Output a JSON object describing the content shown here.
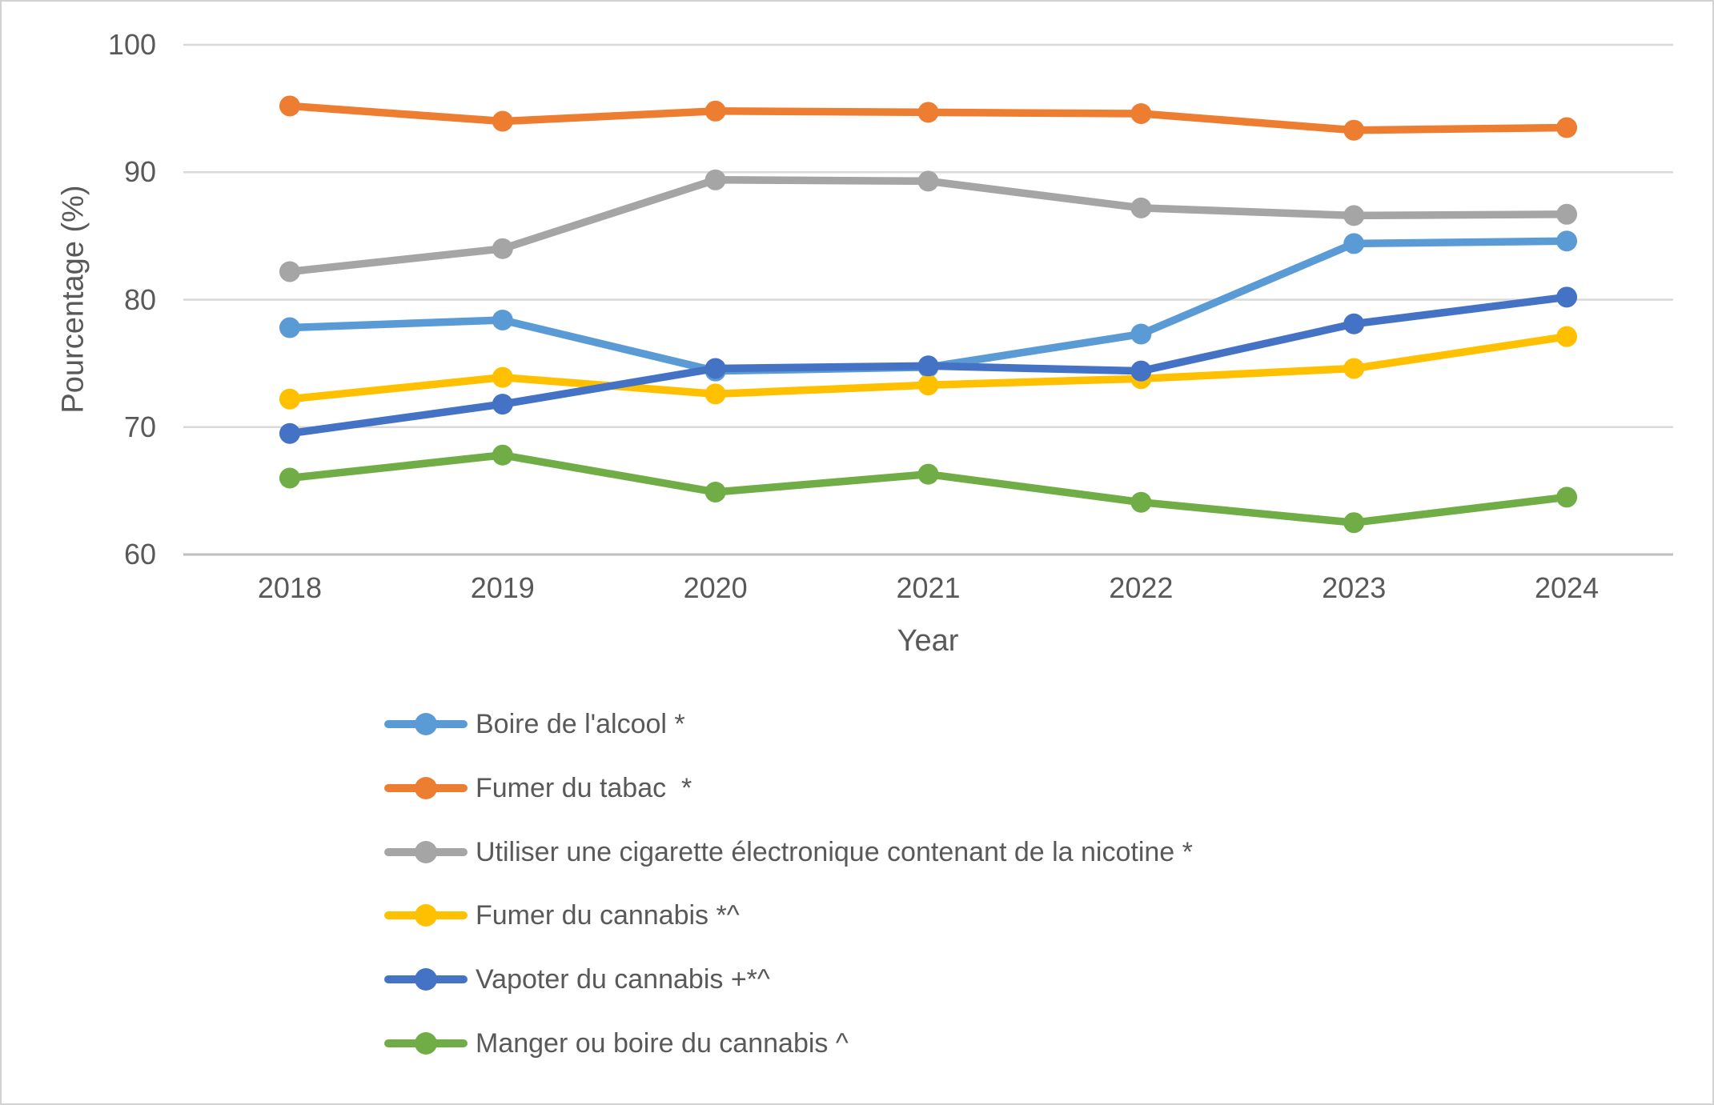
{
  "chart_data": {
    "type": "line",
    "title": "",
    "xlabel": "Year",
    "ylabel": "Pourcentage (%)",
    "ylim": [
      60,
      100
    ],
    "yticks": [
      100,
      90,
      80,
      70,
      60
    ],
    "grid": "horizontal",
    "legend_position": "bottom-left",
    "categories": [
      "2018",
      "2019",
      "2020",
      "2021",
      "2022",
      "2023",
      "2024"
    ],
    "series": [
      {
        "name": "Boire de l'alcool *",
        "color": "#5B9BD5",
        "values": [
          77.8,
          78.4,
          74.4,
          74.7,
          77.3,
          84.4,
          84.6
        ]
      },
      {
        "name": "Fumer du tabac  *",
        "color": "#ED7D31",
        "values": [
          95.2,
          94.0,
          94.8,
          94.7,
          94.6,
          93.3,
          93.5
        ]
      },
      {
        "name": "Utiliser une cigarette électronique contenant de la nicotine *",
        "color": "#A5A5A5",
        "values": [
          82.2,
          84.0,
          89.4,
          89.3,
          87.2,
          86.6,
          86.7
        ]
      },
      {
        "name": "Fumer du cannabis *^",
        "color": "#FFC000",
        "values": [
          72.2,
          73.9,
          72.6,
          73.3,
          73.8,
          74.6,
          77.1
        ]
      },
      {
        "name": "Vapoter du cannabis +*^",
        "color": "#4472C4",
        "values": [
          69.5,
          71.8,
          74.6,
          74.8,
          74.4,
          78.1,
          80.2
        ]
      },
      {
        "name": "Manger ou boire du cannabis ^",
        "color": "#70AD47",
        "values": [
          66.0,
          67.8,
          64.9,
          66.3,
          64.1,
          62.5,
          64.5
        ]
      }
    ],
    "colors": {
      "text": "#595959",
      "gridline": "#D9D9D9",
      "axis_line": "#BFBFBF",
      "background": "#FFFFFF"
    }
  }
}
